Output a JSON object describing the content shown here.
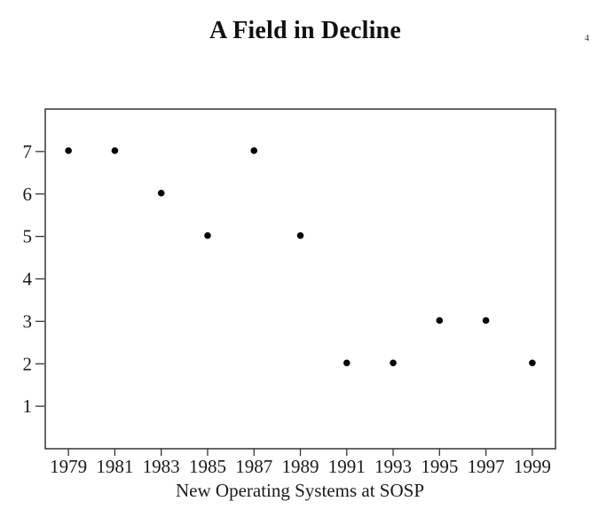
{
  "page_number": "4",
  "chart_data": {
    "type": "scatter",
    "title": "A Field in Decline",
    "xlabel": "New Operating Systems at SOSP",
    "ylabel": "",
    "x": [
      1979,
      1981,
      1983,
      1985,
      1987,
      1989,
      1991,
      1993,
      1995,
      1997,
      1999
    ],
    "values": [
      7,
      7,
      6,
      5,
      7,
      5,
      2,
      2,
      3,
      3,
      2
    ],
    "xticks": [
      1979,
      1981,
      1983,
      1985,
      1987,
      1989,
      1991,
      1993,
      1995,
      1997,
      1999
    ],
    "yticks": [
      1,
      2,
      3,
      4,
      5,
      6,
      7
    ],
    "xlim": [
      1978,
      2000
    ],
    "ylim": [
      0,
      8
    ],
    "grid": false,
    "legend_position": "none",
    "point_color": "#050505",
    "axis_color": "#333333",
    "text_color": "#1a1a1a"
  }
}
